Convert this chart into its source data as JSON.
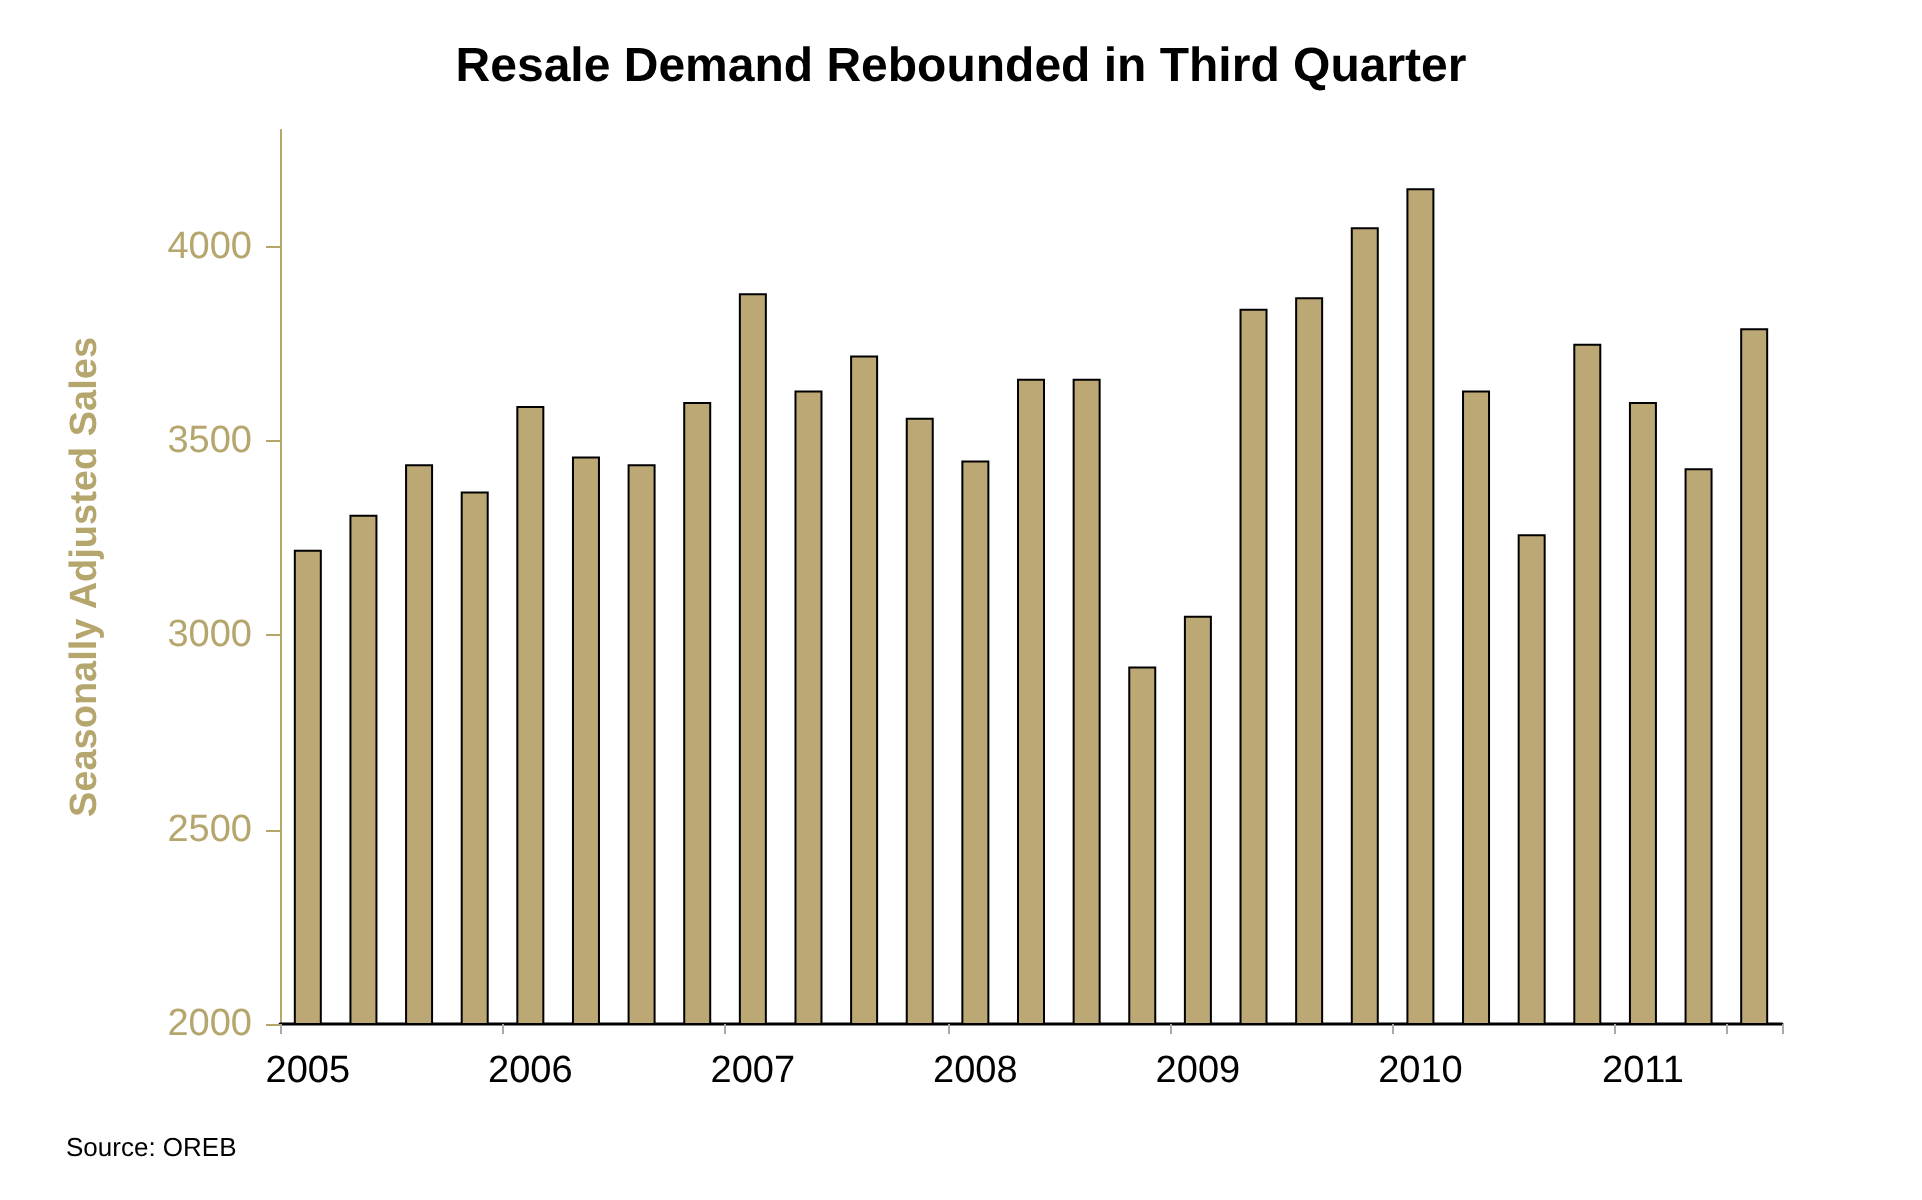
{
  "chart_data": {
    "type": "bar",
    "title": "Resale Demand Rebounded in Third Quarter",
    "ylabel": "Seasonally Adjusted Sales",
    "categories": [
      "2005",
      null,
      null,
      null,
      "2006",
      null,
      null,
      null,
      "2007",
      null,
      null,
      null,
      "2008",
      null,
      null,
      null,
      "2009",
      null,
      null,
      null,
      "2010",
      null,
      null,
      null,
      "2011",
      null,
      null
    ],
    "values": [
      3220,
      3310,
      3440,
      3370,
      3590,
      3460,
      3440,
      3600,
      3880,
      3630,
      3720,
      3560,
      3450,
      3660,
      3660,
      2920,
      3050,
      3840,
      3870,
      4050,
      4150,
      3630,
      3260,
      3750,
      3600,
      3430,
      3790
    ],
    "color": "#bca874",
    "ylim": [
      2000,
      4300
    ],
    "yticks": [
      2000,
      2500,
      3000,
      3500,
      4000
    ],
    "grid": false,
    "annotations": [
      "Source: OREB"
    ]
  }
}
